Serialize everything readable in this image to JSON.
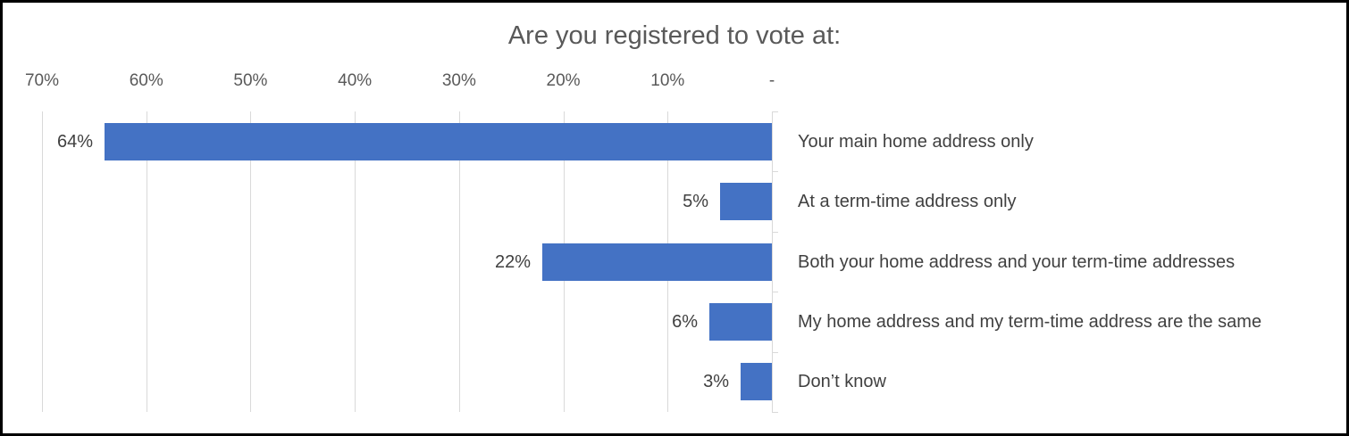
{
  "chart_data": {
    "type": "bar",
    "orientation": "horizontal",
    "direction": "right-to-left",
    "title": "Are you registered to vote at:",
    "categories": [
      "Your main home address only",
      "At a term-time address only",
      "Both your home address and your term-time addresses",
      "My home address and my term-time address are the same",
      "Don’t know"
    ],
    "values": [
      64,
      5,
      22,
      6,
      3
    ],
    "value_labels": [
      "64%",
      "5%",
      "22%",
      "6%",
      "3%"
    ],
    "axis_tick_labels": [
      "70%",
      "60%",
      "50%",
      "40%",
      "30%",
      "20%",
      "10%",
      "-"
    ],
    "value_axis_range": [
      0,
      70
    ],
    "grid": true,
    "legend": "none",
    "data_label_position": "outside-end",
    "category_label_position": "right",
    "colors": {
      "bar": "#4472C4",
      "gridline": "#D9D9D9",
      "axis_line": "#D9D9D9",
      "title_text": "#595959",
      "tick_text": "#595959",
      "value_label_text": "#404040",
      "category_label_text": "#404040",
      "frame_border": "#000000",
      "background": "#FFFFFF"
    }
  }
}
